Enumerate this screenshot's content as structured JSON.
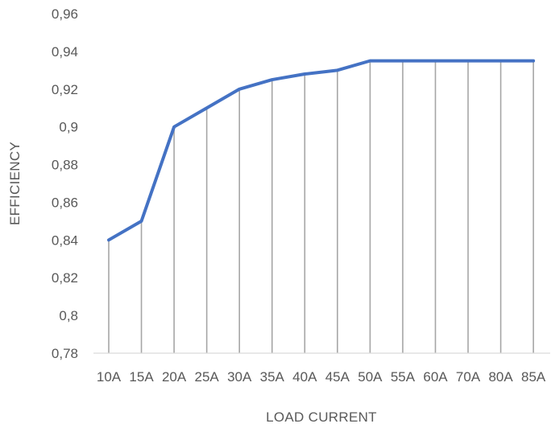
{
  "chart_data": {
    "type": "line",
    "title": "",
    "xlabel": "LOAD CURRENT",
    "ylabel": "EFFICIENCY",
    "categories": [
      "10A",
      "15A",
      "20A",
      "25A",
      "30A",
      "35A",
      "40A",
      "45A",
      "50A",
      "55A",
      "60A",
      "70A",
      "80A",
      "85A"
    ],
    "series": [
      {
        "values": [
          0.84,
          0.85,
          0.9,
          0.91,
          0.92,
          0.925,
          0.928,
          0.93,
          0.935,
          0.935,
          0.935,
          0.935,
          0.935,
          0.935
        ]
      }
    ],
    "ylim": [
      0.78,
      0.96
    ],
    "yticks": [
      0.78,
      0.8,
      0.82,
      0.84,
      0.86,
      0.88,
      0.9,
      0.92,
      0.94,
      0.96
    ],
    "ytick_labels": [
      "0,78",
      "0,8",
      "0,82",
      "0,84",
      "0,86",
      "0,88",
      "0,9",
      "0,92",
      "0,94",
      "0,96"
    ],
    "drop_lines": true,
    "grid": false,
    "legend": "none",
    "colors": {
      "line": "#4472C4",
      "drop_line": "#A6A6A6",
      "axis": "#D9D9D9",
      "text": "#595959"
    }
  }
}
